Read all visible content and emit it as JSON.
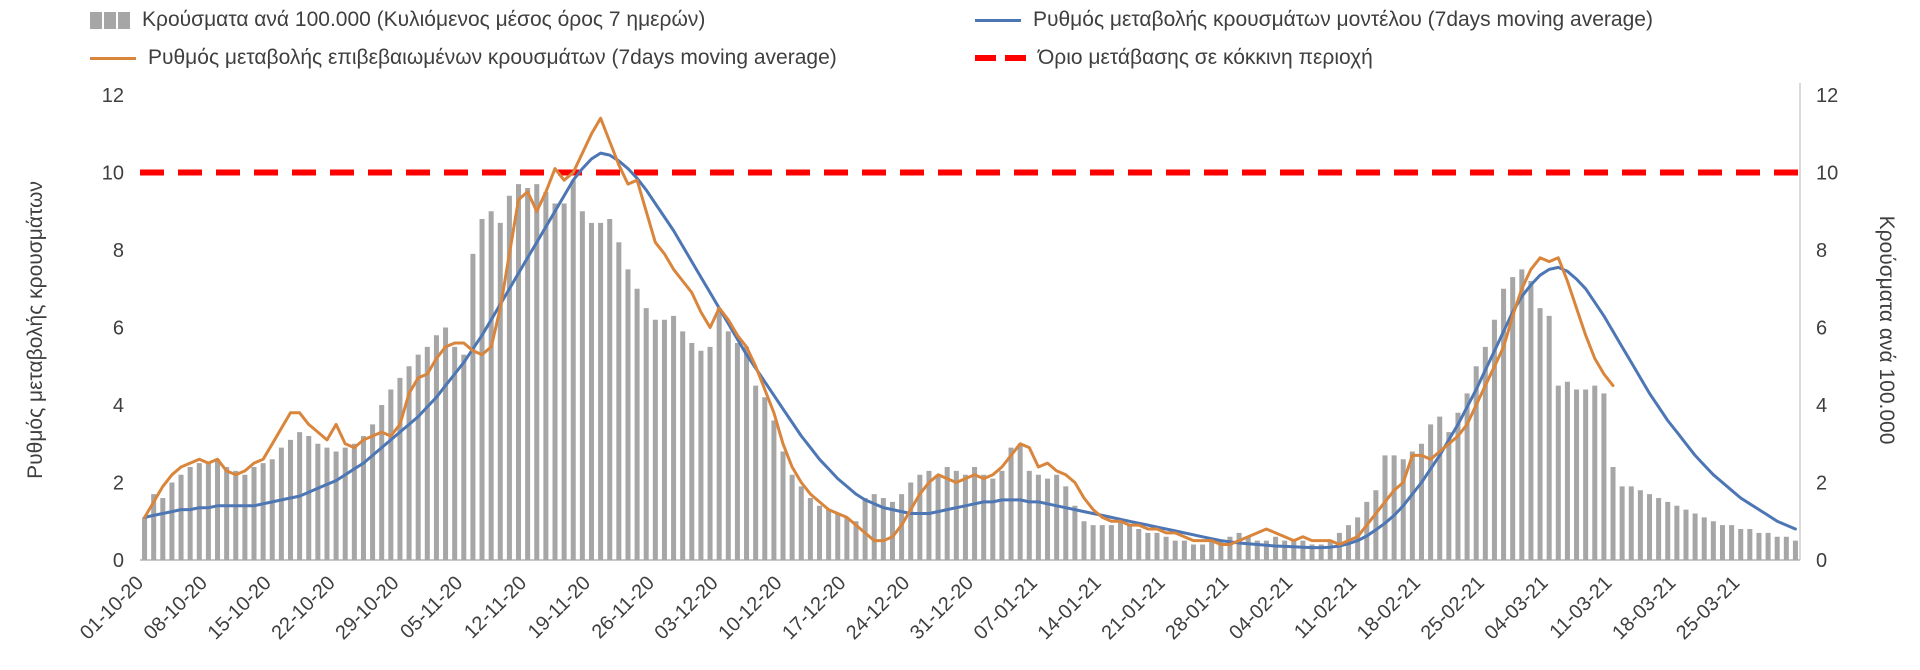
{
  "legend": {
    "bars": "Κρούσματα ανά 100.000 (Κυλιόμενος μέσος όρος 7 ημερών)",
    "model": "Ρυθμός μεταβολής κρουσμάτων μοντέλου (7days moving average)",
    "confirmed": "Ρυθμός μεταβολής επιβεβαιωμένων κρουσμάτων (7days moving average)",
    "threshold": "Όριο μετάβασης σε κόκκινη περιοχή"
  },
  "axes": {
    "left_title": "Ρυθμός μεταβολής κρουσμάτων",
    "right_title": "Κρούσματα ανά 100.000"
  },
  "colors": {
    "bars": "#a6a6a6",
    "model": "#4d76b5",
    "confirmed": "#d9853c",
    "threshold": "#fe0000",
    "text": "#3f3f3f",
    "axis_line": "#b3b3b3"
  },
  "chart_data": {
    "type": "combo-bar-line",
    "n_points": 182,
    "tick_every": 7,
    "ylim": [
      0,
      12
    ],
    "y_ticks": [
      0,
      2,
      4,
      6,
      8,
      10,
      12
    ],
    "x_tick_labels": [
      "01-10-20",
      "08-10-20",
      "15-10-20",
      "22-10-20",
      "29-10-20",
      "05-11-20",
      "12-11-20",
      "19-11-20",
      "26-11-20",
      "03-12-20",
      "10-12-20",
      "17-12-20",
      "24-12-20",
      "31-12-20",
      "07-01-21",
      "14-01-21",
      "21-01-21",
      "28-01-21",
      "04-02-21",
      "11-02-21",
      "18-02-21",
      "25-02-21",
      "04-03-21",
      "11-03-21",
      "18-03-21",
      "25-03-21"
    ],
    "threshold": {
      "name": "Όριο μετάβασης σε κόκκινη περιοχή",
      "value": 10
    },
    "bars": {
      "name": "Κρούσματα ανά 100.000 (Κυλιόμενος μέσος όρος 7 ημερών)",
      "values": [
        1.1,
        1.7,
        1.6,
        2.0,
        2.2,
        2.4,
        2.5,
        2.5,
        2.6,
        2.4,
        2.3,
        2.2,
        2.4,
        2.5,
        2.6,
        2.9,
        3.1,
        3.3,
        3.2,
        3.0,
        2.9,
        2.8,
        2.9,
        3.0,
        3.2,
        3.5,
        4.0,
        4.4,
        4.7,
        5.0,
        5.3,
        5.5,
        5.8,
        6.0,
        5.5,
        5.3,
        7.9,
        8.8,
        9.0,
        8.7,
        9.4,
        9.7,
        9.6,
        9.7,
        9.5,
        9.2,
        9.2,
        9.8,
        9.0,
        8.7,
        8.7,
        8.8,
        8.2,
        7.5,
        7.0,
        6.5,
        6.2,
        6.2,
        6.3,
        5.9,
        5.6,
        5.4,
        5.5,
        6.5,
        5.9,
        5.6,
        5.5,
        4.5,
        4.2,
        3.6,
        2.8,
        2.2,
        1.9,
        1.6,
        1.4,
        1.3,
        1.2,
        1.1,
        1.0,
        1.6,
        1.7,
        1.6,
        1.5,
        1.7,
        2.0,
        2.2,
        2.3,
        2.2,
        2.4,
        2.3,
        2.2,
        2.4,
        2.2,
        2.1,
        2.3,
        2.9,
        3.0,
        2.3,
        2.2,
        2.1,
        2.2,
        1.9,
        1.4,
        1.0,
        0.9,
        0.9,
        0.9,
        1.0,
        0.9,
        0.8,
        0.7,
        0.7,
        0.6,
        0.5,
        0.5,
        0.4,
        0.4,
        0.5,
        0.5,
        0.6,
        0.7,
        0.6,
        0.5,
        0.5,
        0.6,
        0.5,
        0.5,
        0.5,
        0.4,
        0.4,
        0.5,
        0.7,
        0.9,
        1.1,
        1.5,
        1.8,
        2.7,
        2.7,
        2.6,
        2.8,
        3.0,
        3.5,
        3.7,
        3.3,
        3.8,
        4.3,
        5.0,
        5.5,
        6.2,
        7.0,
        7.3,
        7.5,
        7.2,
        6.5,
        6.3,
        4.5,
        4.6,
        4.4,
        4.4,
        4.5,
        4.3,
        2.4,
        1.9,
        1.9,
        1.8,
        1.7,
        1.6,
        1.5,
        1.4,
        1.3,
        1.2,
        1.1,
        1.0,
        0.9,
        0.9,
        0.8,
        0.8,
        0.7,
        0.7,
        0.6,
        0.6,
        0.5
      ]
    },
    "series": [
      {
        "key": "model",
        "name": "Ρυθμός μεταβολής κρουσμάτων μοντέλου (7days moving average)",
        "values": [
          1.1,
          1.15,
          1.2,
          1.25,
          1.3,
          1.3,
          1.35,
          1.35,
          1.4,
          1.4,
          1.4,
          1.4,
          1.4,
          1.45,
          1.5,
          1.55,
          1.6,
          1.65,
          1.75,
          1.85,
          1.95,
          2.05,
          2.2,
          2.35,
          2.5,
          2.7,
          2.9,
          3.1,
          3.3,
          3.5,
          3.7,
          3.95,
          4.2,
          4.5,
          4.8,
          5.1,
          5.45,
          5.8,
          6.2,
          6.6,
          7.0,
          7.4,
          7.8,
          8.2,
          8.6,
          9.0,
          9.4,
          9.8,
          10.1,
          10.35,
          10.5,
          10.45,
          10.3,
          10.1,
          9.85,
          9.55,
          9.2,
          8.85,
          8.5,
          8.1,
          7.7,
          7.3,
          6.9,
          6.5,
          6.1,
          5.7,
          5.3,
          4.95,
          4.6,
          4.25,
          3.9,
          3.55,
          3.2,
          2.9,
          2.6,
          2.35,
          2.1,
          1.9,
          1.7,
          1.55,
          1.45,
          1.35,
          1.3,
          1.25,
          1.2,
          1.2,
          1.2,
          1.25,
          1.3,
          1.35,
          1.4,
          1.45,
          1.5,
          1.5,
          1.55,
          1.55,
          1.55,
          1.5,
          1.5,
          1.45,
          1.4,
          1.35,
          1.3,
          1.25,
          1.2,
          1.15,
          1.1,
          1.05,
          1.0,
          0.95,
          0.9,
          0.85,
          0.8,
          0.75,
          0.7,
          0.65,
          0.6,
          0.55,
          0.5,
          0.47,
          0.44,
          0.42,
          0.4,
          0.38,
          0.36,
          0.35,
          0.34,
          0.33,
          0.32,
          0.32,
          0.33,
          0.36,
          0.42,
          0.5,
          0.62,
          0.78,
          0.95,
          1.15,
          1.4,
          1.7,
          2.0,
          2.35,
          2.7,
          3.1,
          3.5,
          3.95,
          4.4,
          4.9,
          5.4,
          5.9,
          6.4,
          6.8,
          7.1,
          7.35,
          7.5,
          7.55,
          7.45,
          7.25,
          7.0,
          6.65,
          6.3,
          5.9,
          5.5,
          5.1,
          4.7,
          4.3,
          3.95,
          3.6,
          3.3,
          3.0,
          2.7,
          2.45,
          2.2,
          2.0,
          1.8,
          1.6,
          1.45,
          1.3,
          1.15,
          1.0,
          0.9,
          0.8
        ]
      },
      {
        "key": "confirmed",
        "name": "Ρυθμός μεταβολής επιβεβαιωμένων κρουσμάτων (7days moving average)",
        "values": [
          1.1,
          1.5,
          1.9,
          2.2,
          2.4,
          2.5,
          2.6,
          2.5,
          2.6,
          2.3,
          2.2,
          2.3,
          2.5,
          2.6,
          3.0,
          3.4,
          3.8,
          3.8,
          3.5,
          3.3,
          3.1,
          3.5,
          3.0,
          2.9,
          3.1,
          3.2,
          3.3,
          3.2,
          3.5,
          4.3,
          4.7,
          4.8,
          5.2,
          5.5,
          5.6,
          5.6,
          5.4,
          5.3,
          5.5,
          6.5,
          7.9,
          9.3,
          9.5,
          9.0,
          9.5,
          10.1,
          9.8,
          10.0,
          10.5,
          11.0,
          11.4,
          10.8,
          10.2,
          9.7,
          9.8,
          9.0,
          8.2,
          7.9,
          7.5,
          7.2,
          6.9,
          6.4,
          6.0,
          6.5,
          6.2,
          5.8,
          5.5,
          5.0,
          4.4,
          3.8,
          3.0,
          2.4,
          2.0,
          1.7,
          1.5,
          1.3,
          1.2,
          1.1,
          0.9,
          0.7,
          0.5,
          0.5,
          0.6,
          0.9,
          1.3,
          1.7,
          2.0,
          2.2,
          2.1,
          2.0,
          2.1,
          2.2,
          2.1,
          2.2,
          2.4,
          2.7,
          3.0,
          2.9,
          2.4,
          2.5,
          2.3,
          2.2,
          2.0,
          1.6,
          1.3,
          1.1,
          1.0,
          1.0,
          0.9,
          0.9,
          0.8,
          0.8,
          0.7,
          0.7,
          0.6,
          0.5,
          0.5,
          0.5,
          0.4,
          0.4,
          0.5,
          0.6,
          0.7,
          0.8,
          0.7,
          0.6,
          0.5,
          0.6,
          0.5,
          0.5,
          0.5,
          0.4,
          0.5,
          0.6,
          0.9,
          1.2,
          1.5,
          1.8,
          2.0,
          2.7,
          2.7,
          2.6,
          2.8,
          3.0,
          3.2,
          3.5,
          4.0,
          4.5,
          5.0,
          5.5,
          6.3,
          7.0,
          7.5,
          7.8,
          7.7,
          7.8,
          7.2,
          6.5,
          5.8,
          5.2,
          4.8,
          4.5,
          null,
          null,
          null,
          null,
          null,
          null,
          null,
          null,
          null,
          null,
          null,
          null,
          null,
          null,
          null,
          null,
          null,
          null,
          null,
          null
        ]
      }
    ]
  }
}
